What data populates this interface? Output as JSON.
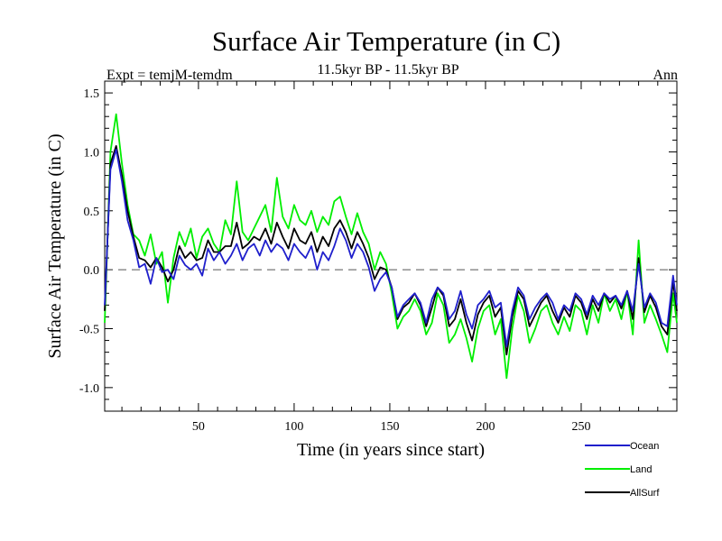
{
  "chart_data": {
    "type": "line",
    "title": "Surface Air Temperature (in C)",
    "subtitle_left": "Expt = temjM-temdm",
    "subtitle_center": "11.5kyr BP - 11.5kyr BP",
    "subtitle_right": "Ann",
    "xlabel": "Time (in years since start)",
    "ylabel": "Surface Air Temperature (in C)",
    "xlim": [
      1,
      300
    ],
    "ylim": [
      -1.2,
      1.6
    ],
    "x_ticks": [
      50,
      100,
      150,
      200,
      250
    ],
    "x_tick_labels": [
      "50",
      "100",
      "150",
      "200",
      "250"
    ],
    "y_ticks": [
      -1.0,
      -0.5,
      0.0,
      0.5,
      1.0,
      1.5
    ],
    "y_tick_labels": [
      "-1.0",
      "-0.5",
      "0.0",
      "0.5",
      "1.0",
      "1.5"
    ],
    "reference_line": 0.0,
    "legend_position": "bottom-right",
    "x": [
      1,
      4,
      7,
      10,
      13,
      16,
      19,
      22,
      25,
      28,
      31,
      34,
      37,
      40,
      43,
      46,
      49,
      52,
      55,
      58,
      61,
      64,
      67,
      70,
      73,
      76,
      79,
      82,
      85,
      88,
      91,
      94,
      97,
      100,
      103,
      106,
      109,
      112,
      115,
      118,
      121,
      124,
      127,
      130,
      133,
      136,
      139,
      142,
      145,
      148,
      151,
      154,
      157,
      160,
      163,
      166,
      169,
      172,
      175,
      178,
      181,
      184,
      187,
      190,
      193,
      196,
      199,
      202,
      205,
      208,
      211,
      214,
      217,
      220,
      223,
      226,
      229,
      232,
      235,
      238,
      241,
      244,
      247,
      250,
      253,
      256,
      259,
      262,
      265,
      268,
      271,
      274,
      277,
      280,
      283,
      286,
      289,
      292,
      295,
      298,
      300
    ],
    "series": [
      {
        "name": "Ocean",
        "color": "#1f1fcc",
        "values": [
          -0.3,
          0.85,
          1.02,
          0.75,
          0.42,
          0.25,
          0.02,
          0.05,
          -0.12,
          0.1,
          -0.02,
          0.0,
          -0.08,
          0.12,
          0.04,
          0.0,
          0.05,
          -0.05,
          0.18,
          0.08,
          0.15,
          0.05,
          0.12,
          0.22,
          0.08,
          0.18,
          0.22,
          0.12,
          0.25,
          0.15,
          0.22,
          0.18,
          0.08,
          0.22,
          0.15,
          0.1,
          0.2,
          0.0,
          0.15,
          0.08,
          0.2,
          0.35,
          0.25,
          0.1,
          0.22,
          0.15,
          0.02,
          -0.18,
          -0.08,
          -0.02,
          -0.15,
          -0.4,
          -0.3,
          -0.25,
          -0.2,
          -0.28,
          -0.45,
          -0.25,
          -0.15,
          -0.2,
          -0.42,
          -0.35,
          -0.18,
          -0.38,
          -0.5,
          -0.3,
          -0.25,
          -0.18,
          -0.32,
          -0.28,
          -0.65,
          -0.35,
          -0.15,
          -0.22,
          -0.42,
          -0.32,
          -0.25,
          -0.2,
          -0.28,
          -0.42,
          -0.3,
          -0.35,
          -0.2,
          -0.25,
          -0.38,
          -0.22,
          -0.3,
          -0.2,
          -0.25,
          -0.22,
          -0.3,
          -0.18,
          -0.35,
          0.05,
          -0.32,
          -0.2,
          -0.28,
          -0.45,
          -0.48,
          -0.05,
          -0.3
        ]
      },
      {
        "name": "Land",
        "color": "#00ee00",
        "values": [
          -0.45,
          1.0,
          1.32,
          0.9,
          0.55,
          0.3,
          0.25,
          0.12,
          0.3,
          0.05,
          0.15,
          -0.28,
          0.1,
          0.32,
          0.2,
          0.35,
          0.1,
          0.28,
          0.35,
          0.22,
          0.15,
          0.42,
          0.3,
          0.75,
          0.32,
          0.25,
          0.35,
          0.45,
          0.55,
          0.32,
          0.78,
          0.45,
          0.35,
          0.55,
          0.42,
          0.38,
          0.5,
          0.32,
          0.45,
          0.38,
          0.58,
          0.62,
          0.45,
          0.3,
          0.48,
          0.32,
          0.22,
          0.0,
          0.15,
          0.05,
          -0.2,
          -0.5,
          -0.4,
          -0.35,
          -0.25,
          -0.35,
          -0.55,
          -0.45,
          -0.2,
          -0.3,
          -0.62,
          -0.55,
          -0.42,
          -0.58,
          -0.78,
          -0.5,
          -0.35,
          -0.3,
          -0.55,
          -0.42,
          -0.92,
          -0.5,
          -0.22,
          -0.35,
          -0.62,
          -0.5,
          -0.35,
          -0.3,
          -0.45,
          -0.55,
          -0.4,
          -0.52,
          -0.3,
          -0.35,
          -0.55,
          -0.3,
          -0.45,
          -0.2,
          -0.35,
          -0.25,
          -0.42,
          -0.18,
          -0.55,
          0.25,
          -0.45,
          -0.3,
          -0.42,
          -0.55,
          -0.7,
          -0.2,
          -0.45
        ]
      },
      {
        "name": "AllSurf",
        "color": "#000000",
        "values": [
          -0.35,
          0.9,
          1.05,
          0.8,
          0.5,
          0.28,
          0.1,
          0.08,
          0.02,
          0.1,
          0.02,
          -0.1,
          0.0,
          0.2,
          0.1,
          0.15,
          0.08,
          0.1,
          0.25,
          0.15,
          0.15,
          0.2,
          0.2,
          0.4,
          0.18,
          0.22,
          0.28,
          0.25,
          0.35,
          0.22,
          0.4,
          0.28,
          0.18,
          0.35,
          0.25,
          0.22,
          0.32,
          0.15,
          0.28,
          0.2,
          0.35,
          0.42,
          0.32,
          0.18,
          0.32,
          0.22,
          0.1,
          -0.08,
          0.02,
          0.0,
          -0.15,
          -0.42,
          -0.32,
          -0.28,
          -0.2,
          -0.3,
          -0.48,
          -0.32,
          -0.15,
          -0.22,
          -0.48,
          -0.42,
          -0.25,
          -0.45,
          -0.6,
          -0.38,
          -0.28,
          -0.22,
          -0.4,
          -0.32,
          -0.72,
          -0.4,
          -0.18,
          -0.25,
          -0.48,
          -0.38,
          -0.28,
          -0.22,
          -0.35,
          -0.45,
          -0.32,
          -0.4,
          -0.22,
          -0.28,
          -0.42,
          -0.25,
          -0.35,
          -0.2,
          -0.28,
          -0.22,
          -0.33,
          -0.18,
          -0.42,
          0.1,
          -0.36,
          -0.22,
          -0.32,
          -0.48,
          -0.55,
          -0.1,
          -0.35
        ]
      }
    ]
  }
}
